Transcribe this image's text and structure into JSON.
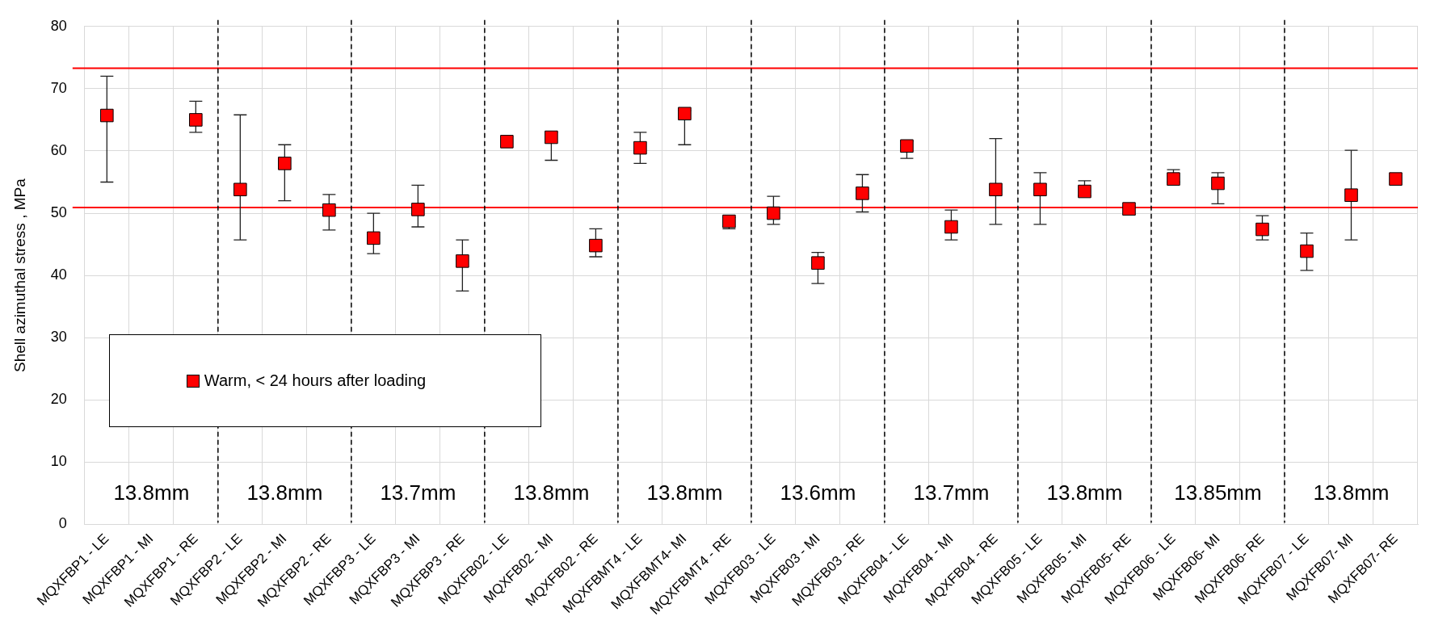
{
  "chart_data": {
    "type": "scatter",
    "ylabel": "Shell azimuthal stress , MPa",
    "categories": [
      "MQXFBP1 - LE",
      "MQXFBP1 - MI",
      "MQXFBP1 - RE",
      "MQXFBP2 - LE",
      "MQXFBP2 - MI",
      "MQXFBP2 - RE",
      "MQXFBP3 - LE",
      "MQXFBP3 - MI",
      "MQXFBP3 - RE",
      "MQXFB02 - LE",
      "MQXFB02 - MI",
      "MQXFB02 - RE",
      "MQXFBMT4 - LE",
      "MQXFBMT4- MI",
      "MQXFBMT4 - RE",
      "MQXFB03 - LE",
      "MQXFB03 - MI",
      "MQXFB03 - RE",
      "MQXFB04 - LE",
      "MQXFB04 - MI",
      "MQXFB04 - RE",
      "MQXFB05 - LE",
      "MQXFB05 - MI",
      "MQXFB05- RE",
      "MQXFB06 - LE",
      "MQXFB06- MI",
      "MQXFB06- RE",
      "MQXFB07 - LE",
      "MQXFB07- MI",
      "MQXFB07- RE"
    ],
    "series": [
      {
        "name": "Warm, < 24 hours after loading",
        "color": "#ff0000",
        "values": [
          65.7,
          null,
          65,
          53.8,
          58,
          50.5,
          46,
          50.6,
          42.3,
          61.5,
          62.2,
          44.8,
          60.5,
          66,
          48.7,
          50,
          42,
          53.2,
          60.8,
          47.8,
          53.8,
          53.8,
          53.5,
          50.7,
          55.5,
          54.8,
          47.4,
          43.9,
          52.9,
          55.5
        ],
        "errors": [
          [
            55,
            72
          ],
          null,
          [
            63,
            68
          ],
          [
            45.7,
            65.8
          ],
          [
            52,
            61
          ],
          [
            47.3,
            53
          ],
          [
            43.5,
            50
          ],
          [
            47.8,
            54.5
          ],
          [
            37.5,
            45.7
          ],
          null,
          [
            58.5,
            63
          ],
          [
            43,
            47.5
          ],
          [
            58,
            63
          ],
          [
            61,
            66.5
          ],
          [
            47.5,
            49.3
          ],
          [
            48.2,
            52.7
          ],
          [
            38.7,
            43.7
          ],
          [
            50.2,
            56.2
          ],
          [
            58.8,
            61.5
          ],
          [
            45.7,
            50.5
          ],
          [
            48.2,
            62
          ],
          [
            48.2,
            56.5
          ],
          [
            52.8,
            55.2
          ],
          [
            49.8,
            51.2
          ],
          [
            55,
            57
          ],
          [
            51.5,
            56.5
          ],
          [
            45.7,
            49.6
          ],
          [
            40.8,
            46.8
          ],
          [
            45.7,
            60.1
          ],
          null
        ]
      }
    ],
    "ylim": [
      0,
      80
    ],
    "yticks": [
      0,
      10,
      20,
      30,
      40,
      50,
      60,
      70,
      80
    ],
    "grid": true,
    "marker": "square",
    "legend": "bottom left",
    "ref_lines": [
      {
        "axis": "y",
        "value": 73.3,
        "color": "#ff0000"
      },
      {
        "axis": "y",
        "value": 50.9,
        "color": "#ff0000"
      }
    ],
    "annotations": [
      "13.8mm",
      "13.8mm",
      "13.7mm",
      "13.8mm",
      "13.8mm",
      "13.6mm",
      "13.7mm",
      "13.8mm",
      "13.85mm",
      "13.8mm"
    ]
  }
}
